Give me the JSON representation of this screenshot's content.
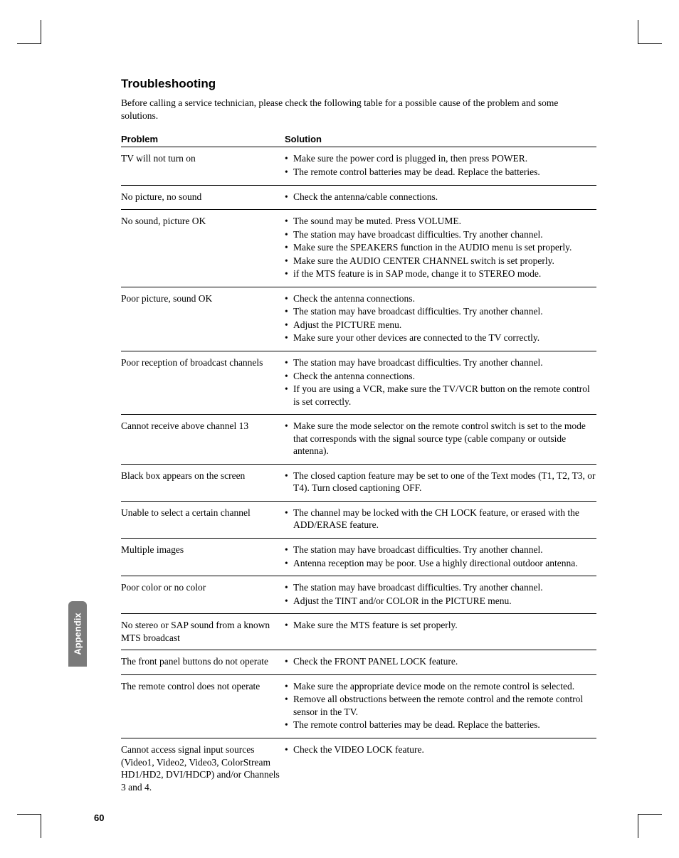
{
  "section_title": "Troubleshooting",
  "intro": "Before calling a service technician, please check the following table for a possible cause of the problem and some solutions.",
  "head": {
    "problem": "Problem",
    "solution": "Solution"
  },
  "rows": [
    {
      "problem": "TV will not turn on",
      "solutions": [
        "Make sure the power cord is plugged in, then press POWER.",
        "The remote control batteries may be dead. Replace the batteries."
      ]
    },
    {
      "problem": "No picture, no sound",
      "solutions": [
        "Check the antenna/cable connections."
      ]
    },
    {
      "problem": "No sound, picture OK",
      "solutions": [
        "The sound may be muted. Press VOLUME.",
        "The station may have broadcast difficulties. Try another channel.",
        "Make sure the SPEAKERS function in the AUDIO menu is set properly.",
        "Make sure the AUDIO CENTER CHANNEL switch is set properly.",
        "if the MTS feature is in SAP mode, change it to STEREO mode."
      ]
    },
    {
      "problem": "Poor picture, sound OK",
      "solutions": [
        "Check the antenna connections.",
        "The station may have broadcast difficulties. Try another channel.",
        "Adjust the PICTURE menu.",
        "Make sure your other devices are connected to the TV correctly."
      ]
    },
    {
      "problem": "Poor reception of broadcast channels",
      "solutions": [
        "The station may have broadcast difficulties. Try another channel.",
        "Check the antenna connections.",
        "If you are using a VCR, make sure the TV/VCR button on the remote control is set correctly."
      ]
    },
    {
      "problem": "Cannot receive above channel 13",
      "solutions": [
        "Make sure the mode selector on the remote control switch is set to the mode that corresponds with the signal source type (cable company or outside antenna)."
      ]
    },
    {
      "problem": "Black box appears on the screen",
      "solutions": [
        "The closed caption feature may be set to one of the Text modes (T1, T2, T3, or T4). Turn closed captioning OFF."
      ]
    },
    {
      "problem": "Unable to select a certain channel",
      "solutions": [
        "The channel may be locked with the CH LOCK feature, or erased with the ADD/ERASE feature."
      ]
    },
    {
      "problem": "Multiple images",
      "solutions": [
        "The station may have broadcast difficulties. Try another channel.",
        "Antenna reception may be poor. Use a highly directional outdoor antenna."
      ]
    },
    {
      "problem": "Poor color or no color",
      "solutions": [
        "The station may have broadcast difficulties. Try another channel.",
        "Adjust the TINT and/or COLOR in the PICTURE menu."
      ]
    },
    {
      "problem": "No stereo or SAP sound from a known MTS broadcast",
      "solutions": [
        "Make sure the MTS feature is set properly."
      ]
    },
    {
      "problem": "The front panel buttons do not operate",
      "solutions": [
        "Check the FRONT PANEL LOCK feature."
      ]
    },
    {
      "problem": "The remote control does not operate",
      "solutions": [
        "Make sure the appropriate device mode on the remote control is selected.",
        "Remove all obstructions between the remote control and the remote control sensor in the TV.",
        "The remote control batteries may be dead. Replace the batteries."
      ]
    },
    {
      "problem": "Cannot access signal input sources (Video1, Video2, Video3, ColorStream HD1/HD2, DVI/HDCP) and/or Channels 3 and 4.",
      "solutions": [
        "Check the VIDEO LOCK feature."
      ]
    }
  ],
  "side_tab": "Appendix",
  "page_number": "60",
  "colors": {
    "text": "#000000",
    "background": "#ffffff",
    "tab_bg": "#7a7a7a",
    "tab_text": "#ffffff"
  }
}
